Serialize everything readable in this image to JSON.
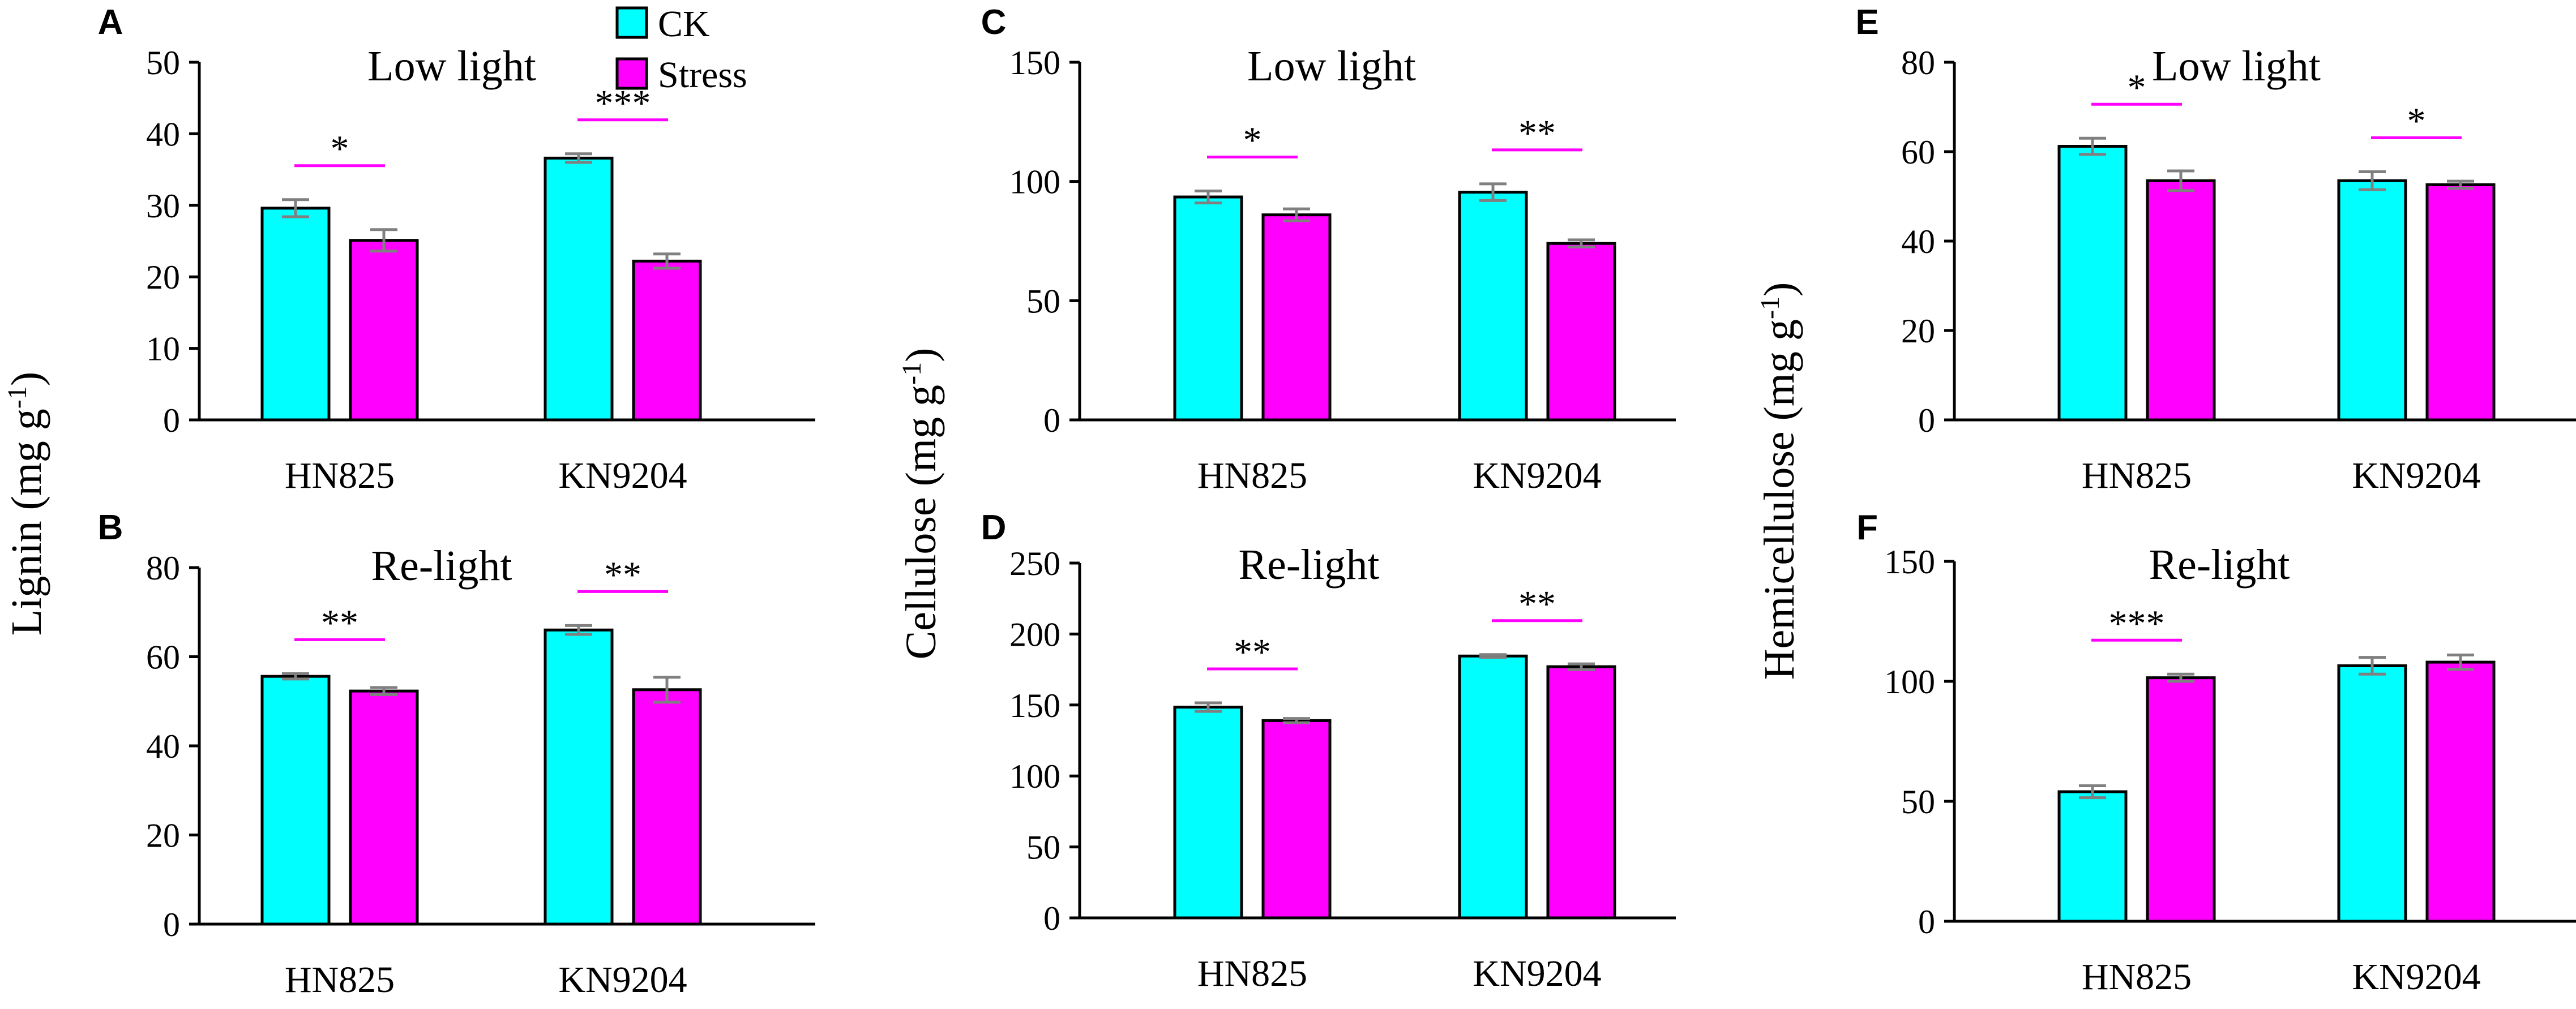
{
  "colors": {
    "CK": "#00FFFF",
    "Stress": "#FF00FF",
    "axis": "#000000",
    "error": "#808080",
    "sigline": "#FF00FF"
  },
  "legend": {
    "items": [
      {
        "label": "CK",
        "color": "#00FFFF"
      },
      {
        "label": "Stress",
        "color": "#FF00FF"
      }
    ]
  },
  "ylabels": {
    "lignin": "Lignin (mg g",
    "cellulose": "Cellulose (mg g",
    "hemicellulose": "Hemicellulose (mg g",
    "superscript": "-1",
    "close": ")"
  },
  "chart_data": [
    {
      "panel": "A",
      "type": "bar",
      "title": "Low light",
      "ylabel": "Lignin (mg g-1)",
      "ylim": [
        0,
        50
      ],
      "yticks": [
        0,
        10,
        20,
        30,
        40,
        50
      ],
      "categories": [
        "HN825",
        "KN9204"
      ],
      "series": [
        {
          "name": "CK",
          "values": [
            29.6,
            36.6
          ],
          "errors": [
            1.2,
            0.6
          ]
        },
        {
          "name": "Stress",
          "values": [
            25.1,
            22.2
          ],
          "errors": [
            1.5,
            1.0
          ]
        }
      ],
      "significance": [
        "*",
        "***"
      ]
    },
    {
      "panel": "B",
      "type": "bar",
      "title": "Re-light",
      "ylabel": "Lignin (mg g-1)",
      "ylim": [
        0,
        80
      ],
      "yticks": [
        0,
        20,
        40,
        60,
        80
      ],
      "categories": [
        "HN825",
        "KN9204"
      ],
      "series": [
        {
          "name": "CK",
          "values": [
            55.6,
            66.0
          ],
          "errors": [
            0.6,
            1.0
          ]
        },
        {
          "name": "Stress",
          "values": [
            52.3,
            52.6
          ],
          "errors": [
            0.8,
            2.8
          ]
        }
      ],
      "significance": [
        "**",
        "**"
      ]
    },
    {
      "panel": "C",
      "type": "bar",
      "title": "Low light",
      "ylabel": "Cellulose (mg g-1)",
      "ylim": [
        0,
        150
      ],
      "yticks": [
        0,
        50,
        100,
        150
      ],
      "categories": [
        "HN825",
        "KN9204"
      ],
      "series": [
        {
          "name": "CK",
          "values": [
            93.5,
            95.5
          ],
          "errors": [
            2.5,
            3.5
          ]
        },
        {
          "name": "Stress",
          "values": [
            86.0,
            74.0
          ],
          "errors": [
            2.5,
            1.5
          ]
        }
      ],
      "significance": [
        "*",
        "**"
      ]
    },
    {
      "panel": "D",
      "type": "bar",
      "title": "Re-light",
      "ylabel": "Cellulose (mg g-1)",
      "ylim": [
        0,
        250
      ],
      "yticks": [
        0,
        50,
        100,
        150,
        200,
        250
      ],
      "categories": [
        "HN825",
        "KN9204"
      ],
      "series": [
        {
          "name": "CK",
          "values": [
            148.5,
            184.5
          ],
          "errors": [
            3.0,
            1.0
          ]
        },
        {
          "name": "Stress",
          "values": [
            139.0,
            177.0
          ],
          "errors": [
            1.5,
            2.0
          ]
        }
      ],
      "significance": [
        "**",
        "**"
      ]
    },
    {
      "panel": "E",
      "type": "bar",
      "title": "Low light",
      "ylabel": "Hemicellulose (mg g-1)",
      "ylim": [
        0,
        80
      ],
      "yticks": [
        0,
        20,
        40,
        60,
        80
      ],
      "categories": [
        "HN825",
        "KN9204"
      ],
      "series": [
        {
          "name": "CK",
          "values": [
            61.2,
            53.5
          ],
          "errors": [
            1.8,
            2.0
          ]
        },
        {
          "name": "Stress",
          "values": [
            53.5,
            52.6
          ],
          "errors": [
            2.2,
            0.8
          ]
        }
      ],
      "significance": [
        "*",
        "*"
      ]
    },
    {
      "panel": "F",
      "type": "bar",
      "title": "Re-light",
      "ylabel": "Hemicellulose (mg g-1)",
      "ylim": [
        0,
        150
      ],
      "yticks": [
        0,
        50,
        100,
        150
      ],
      "categories": [
        "HN825",
        "KN9204"
      ],
      "series": [
        {
          "name": "CK",
          "values": [
            54.0,
            106.5
          ],
          "errors": [
            2.5,
            3.5
          ]
        },
        {
          "name": "Stress",
          "values": [
            101.5,
            108.0
          ],
          "errors": [
            1.5,
            3.0
          ]
        }
      ],
      "significance": [
        "***",
        null
      ]
    }
  ]
}
